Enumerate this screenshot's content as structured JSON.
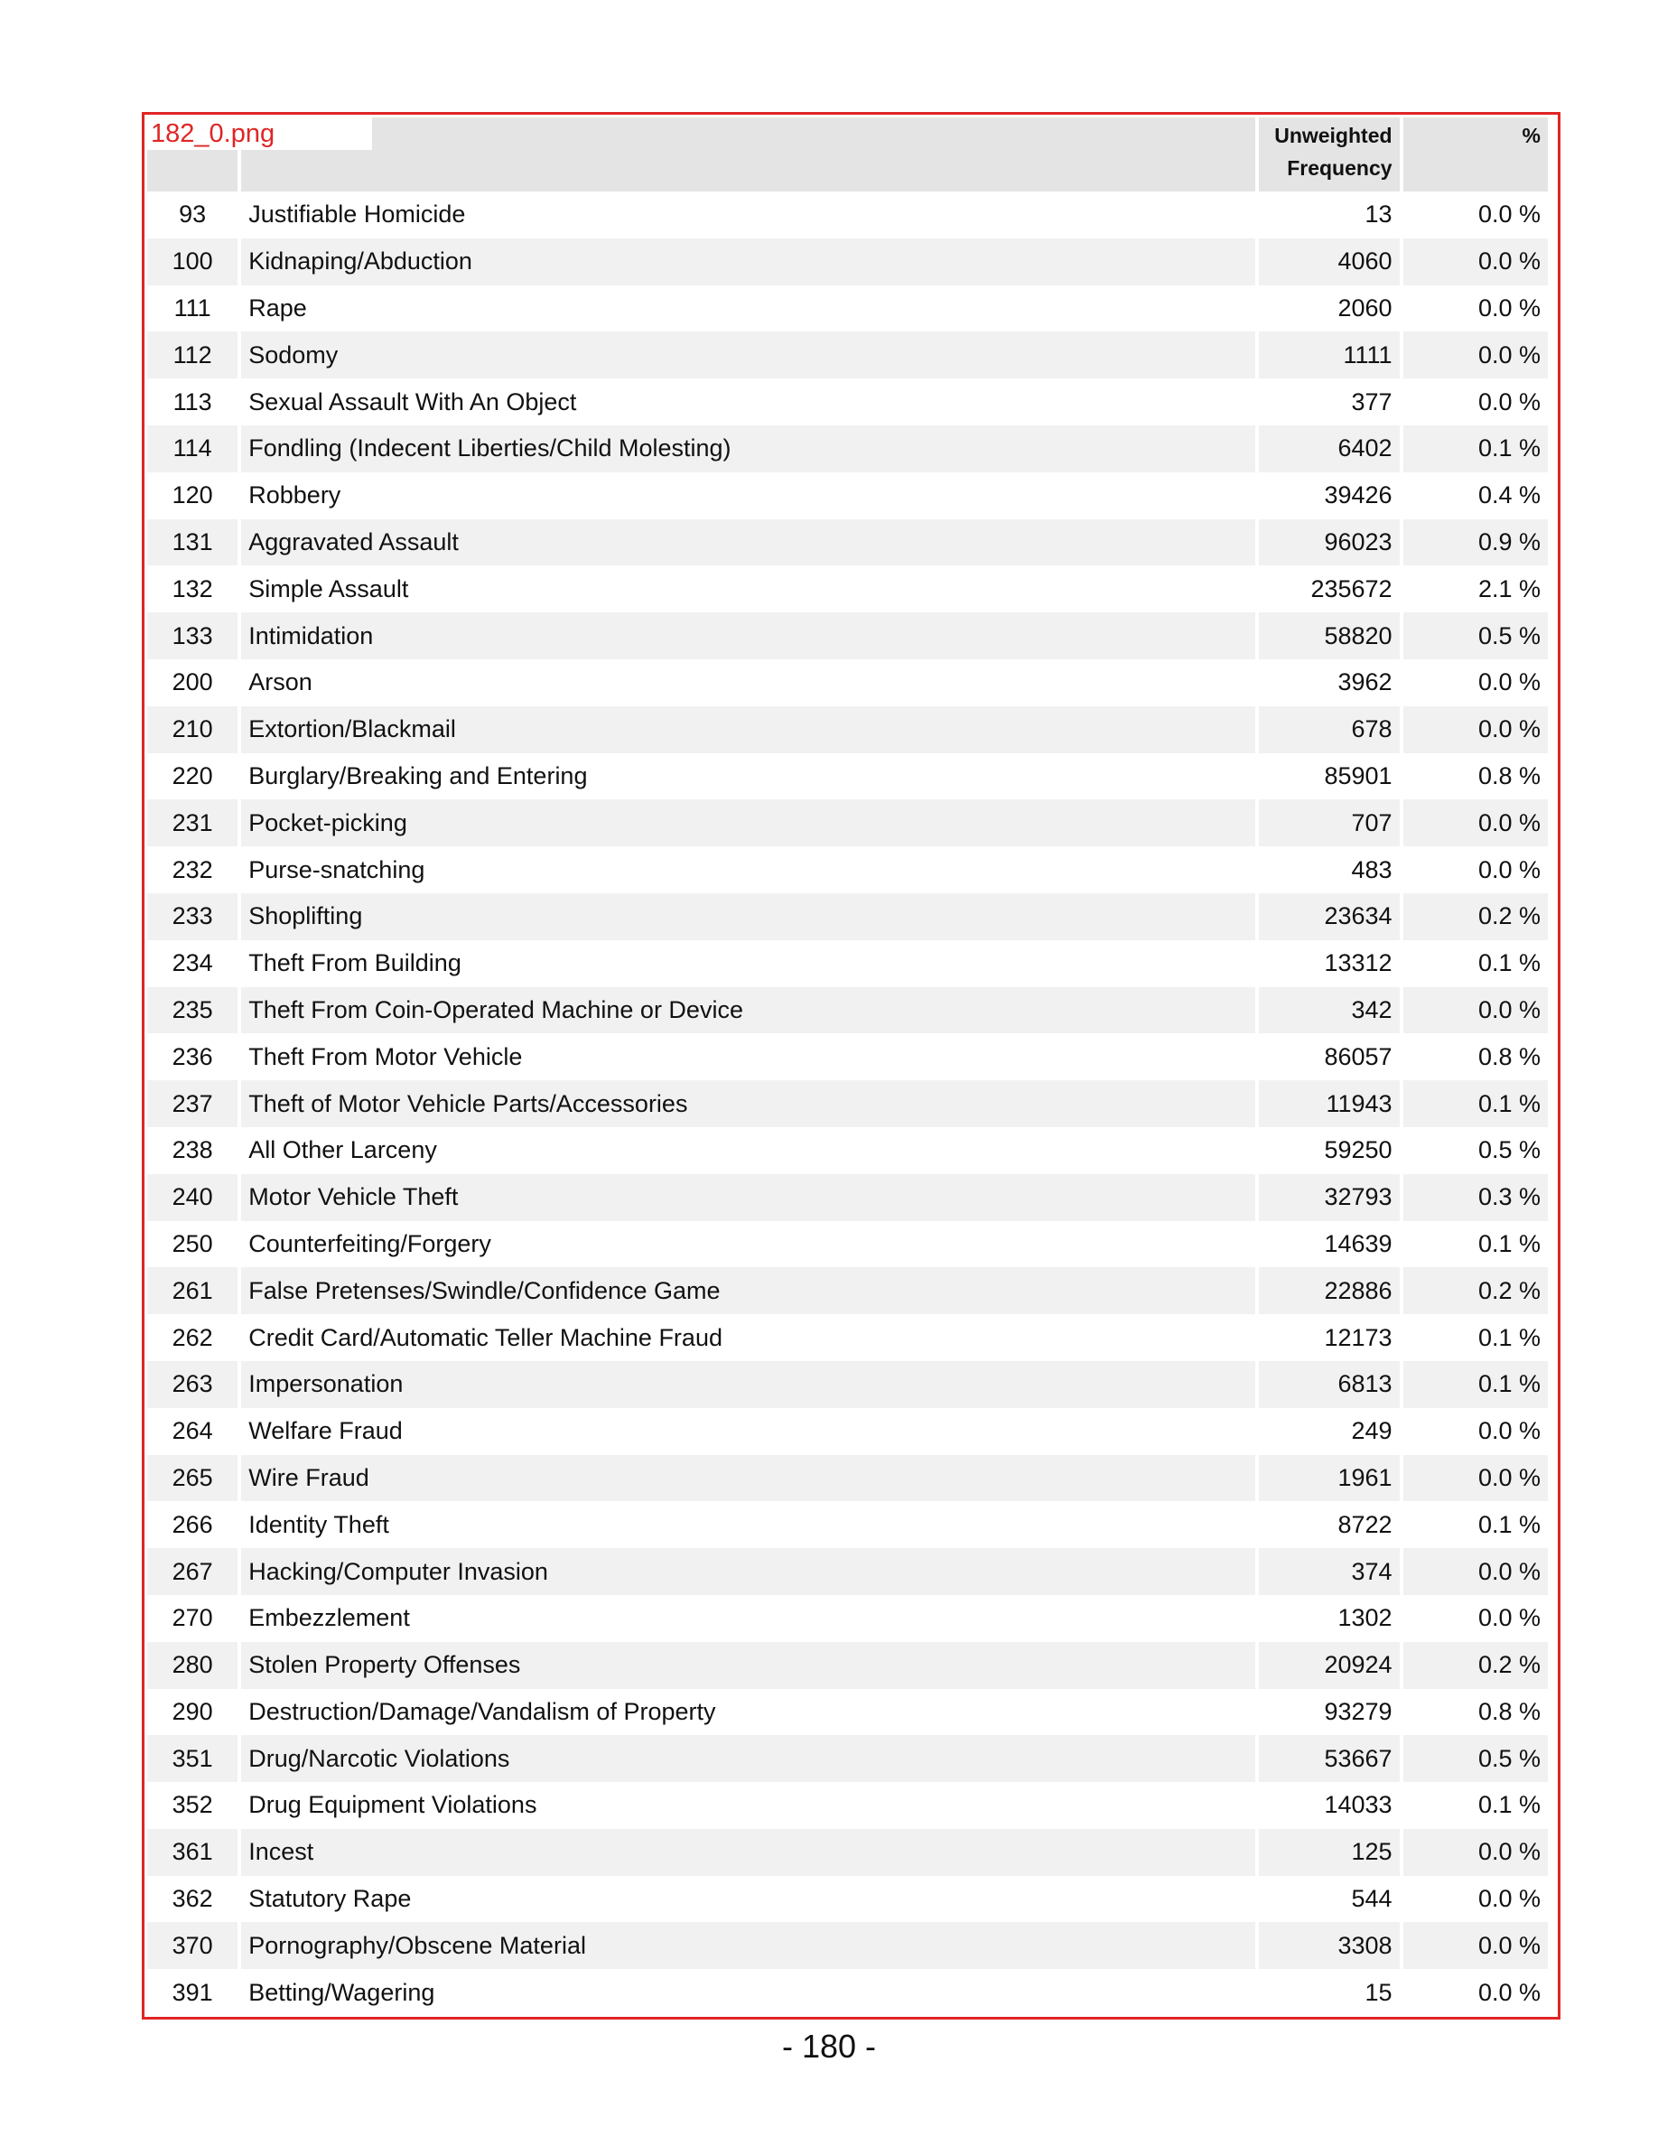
{
  "file_label": "182_0.png",
  "table": {
    "headers": {
      "code": "",
      "description": "",
      "frequency_line1": "Unweighted",
      "frequency_line2": "Frequency",
      "percent": "%"
    },
    "rows": [
      {
        "code": "93",
        "description": "Justifiable Homicide",
        "frequency": "13",
        "percent": "0.0 %"
      },
      {
        "code": "100",
        "description": "Kidnaping/Abduction",
        "frequency": "4060",
        "percent": "0.0 %"
      },
      {
        "code": "111",
        "description": "Rape",
        "frequency": "2060",
        "percent": "0.0 %"
      },
      {
        "code": "112",
        "description": "Sodomy",
        "frequency": "1111",
        "percent": "0.0 %"
      },
      {
        "code": "113",
        "description": "Sexual Assault With An Object",
        "frequency": "377",
        "percent": "0.0 %"
      },
      {
        "code": "114",
        "description": "Fondling (Indecent Liberties/Child Molesting)",
        "frequency": "6402",
        "percent": "0.1 %"
      },
      {
        "code": "120",
        "description": "Robbery",
        "frequency": "39426",
        "percent": "0.4 %"
      },
      {
        "code": "131",
        "description": "Aggravated Assault",
        "frequency": "96023",
        "percent": "0.9 %"
      },
      {
        "code": "132",
        "description": "Simple Assault",
        "frequency": "235672",
        "percent": "2.1 %"
      },
      {
        "code": "133",
        "description": "Intimidation",
        "frequency": "58820",
        "percent": "0.5 %"
      },
      {
        "code": "200",
        "description": "Arson",
        "frequency": "3962",
        "percent": "0.0 %"
      },
      {
        "code": "210",
        "description": "Extortion/Blackmail",
        "frequency": "678",
        "percent": "0.0 %"
      },
      {
        "code": "220",
        "description": "Burglary/Breaking and Entering",
        "frequency": "85901",
        "percent": "0.8 %"
      },
      {
        "code": "231",
        "description": "Pocket-picking",
        "frequency": "707",
        "percent": "0.0 %"
      },
      {
        "code": "232",
        "description": "Purse-snatching",
        "frequency": "483",
        "percent": "0.0 %"
      },
      {
        "code": "233",
        "description": "Shoplifting",
        "frequency": "23634",
        "percent": "0.2 %"
      },
      {
        "code": "234",
        "description": "Theft From Building",
        "frequency": "13312",
        "percent": "0.1 %"
      },
      {
        "code": "235",
        "description": "Theft From Coin-Operated Machine or Device",
        "frequency": "342",
        "percent": "0.0 %"
      },
      {
        "code": "236",
        "description": "Theft From Motor Vehicle",
        "frequency": "86057",
        "percent": "0.8 %"
      },
      {
        "code": "237",
        "description": "Theft of Motor Vehicle Parts/Accessories",
        "frequency": "11943",
        "percent": "0.1 %"
      },
      {
        "code": "238",
        "description": "All Other Larceny",
        "frequency": "59250",
        "percent": "0.5 %"
      },
      {
        "code": "240",
        "description": "Motor Vehicle Theft",
        "frequency": "32793",
        "percent": "0.3 %"
      },
      {
        "code": "250",
        "description": "Counterfeiting/Forgery",
        "frequency": "14639",
        "percent": "0.1 %"
      },
      {
        "code": "261",
        "description": "False Pretenses/Swindle/Confidence Game",
        "frequency": "22886",
        "percent": "0.2 %"
      },
      {
        "code": "262",
        "description": "Credit Card/Automatic Teller Machine Fraud",
        "frequency": "12173",
        "percent": "0.1 %"
      },
      {
        "code": "263",
        "description": "Impersonation",
        "frequency": "6813",
        "percent": "0.1 %"
      },
      {
        "code": "264",
        "description": "Welfare Fraud",
        "frequency": "249",
        "percent": "0.0 %"
      },
      {
        "code": "265",
        "description": "Wire Fraud",
        "frequency": "1961",
        "percent": "0.0 %"
      },
      {
        "code": "266",
        "description": "Identity Theft",
        "frequency": "8722",
        "percent": "0.1 %"
      },
      {
        "code": "267",
        "description": "Hacking/Computer Invasion",
        "frequency": "374",
        "percent": "0.0 %"
      },
      {
        "code": "270",
        "description": "Embezzlement",
        "frequency": "1302",
        "percent": "0.0 %"
      },
      {
        "code": "280",
        "description": "Stolen Property Offenses",
        "frequency": "20924",
        "percent": "0.2 %"
      },
      {
        "code": "290",
        "description": "Destruction/Damage/Vandalism of Property",
        "frequency": "93279",
        "percent": "0.8 %"
      },
      {
        "code": "351",
        "description": "Drug/Narcotic Violations",
        "frequency": "53667",
        "percent": "0.5 %"
      },
      {
        "code": "352",
        "description": "Drug Equipment Violations",
        "frequency": "14033",
        "percent": "0.1 %"
      },
      {
        "code": "361",
        "description": "Incest",
        "frequency": "125",
        "percent": "0.0 %"
      },
      {
        "code": "362",
        "description": "Statutory Rape",
        "frequency": "544",
        "percent": "0.0 %"
      },
      {
        "code": "370",
        "description": "Pornography/Obscene Material",
        "frequency": "3308",
        "percent": "0.0 %"
      },
      {
        "code": "391",
        "description": "Betting/Wagering",
        "frequency": "15",
        "percent": "0.0 %"
      }
    ]
  },
  "page_number": "- 180 -",
  "colors": {
    "frame_border": "#e02525",
    "header_bg": "#e4e4e4",
    "stripe_bg": "#f1f1f1"
  }
}
